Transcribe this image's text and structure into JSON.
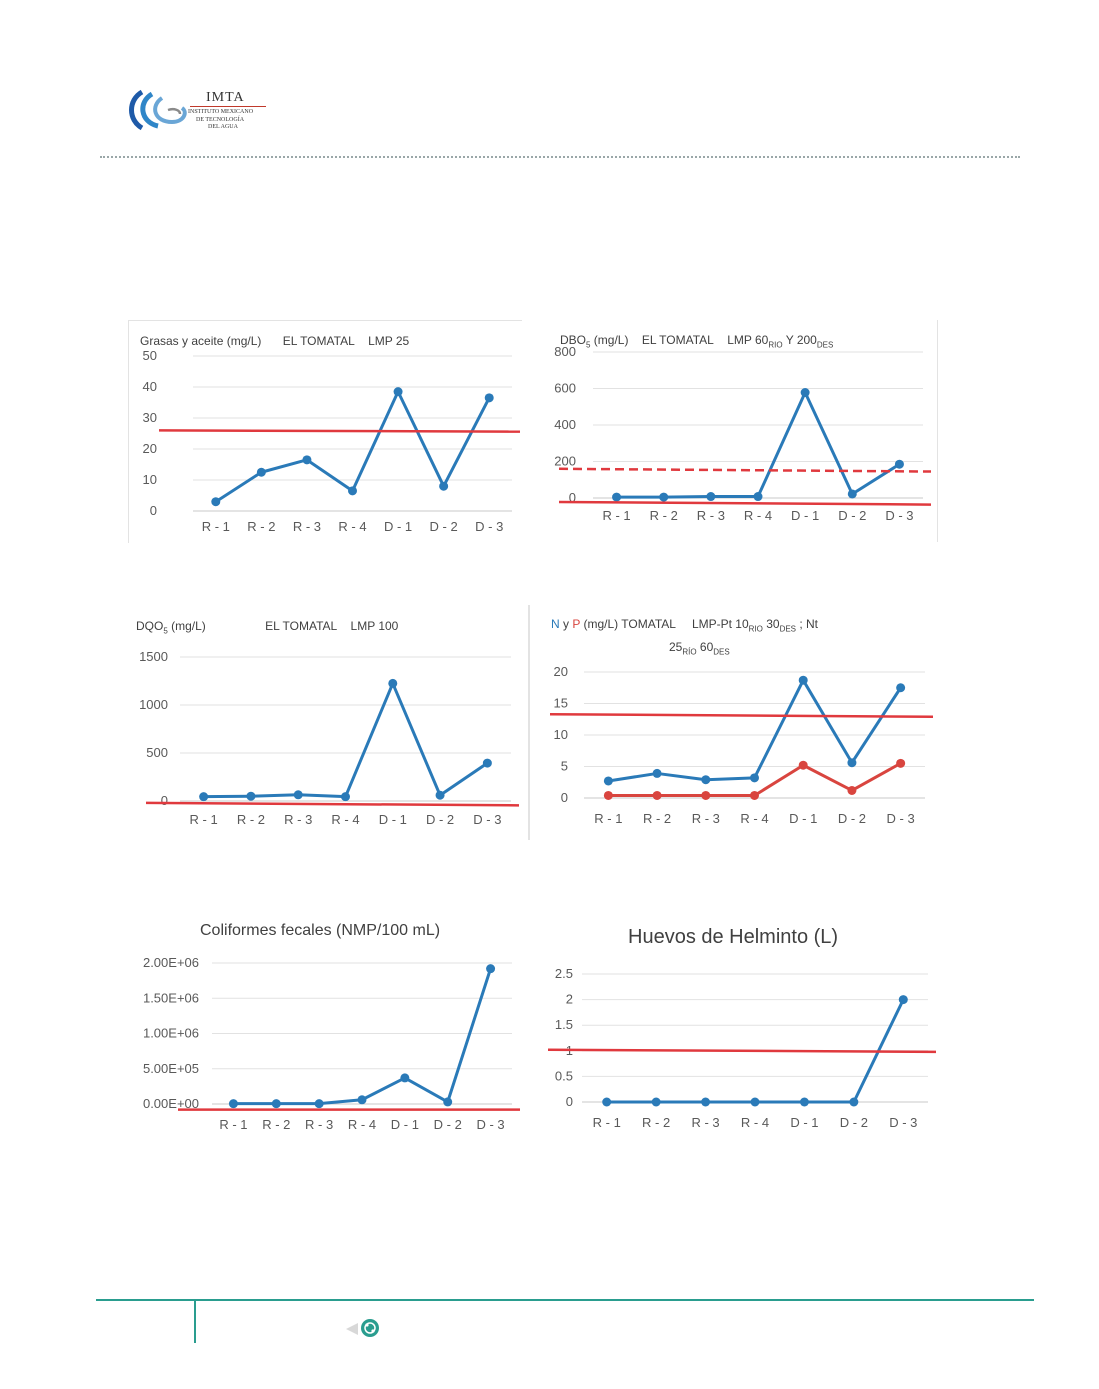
{
  "header": {
    "logo_title": "IMTA",
    "logo_lines": [
      "INSTITUTO MEXICANO",
      "DE TECNOLOGÍA",
      "DEL AGUA"
    ]
  },
  "charts": {
    "grasas": {
      "title": [
        "Grasas y aceite (mg/L)",
        "EL TOMATAL",
        "LMP 25"
      ]
    },
    "dbo": {
      "title": [
        "DBO",
        "5",
        " (mg/L)",
        "EL TOMATAL",
        "LMP 60",
        "RIO",
        " Y 200",
        "DES"
      ]
    },
    "dqo": {
      "title": [
        "DQO",
        "5",
        "  (mg/L)",
        "EL TOMATAL",
        "LMP 100"
      ]
    },
    "nyp": {
      "title": [
        "N",
        " y ",
        "P",
        " (mg/L) TOMATAL",
        "LMP-Pt  10",
        "RIO",
        "  30",
        "DES",
        "  ; Nt",
        "25",
        "RÍO",
        " 60",
        "DES"
      ]
    },
    "coliformes": {
      "title": "Coliformes fecales (NMP/100 mL)"
    },
    "helminto": {
      "title": "Huevos de Helminto (L)"
    }
  },
  "chart_data": [
    {
      "id": "grasas",
      "type": "line",
      "categories": [
        "R - 1",
        "R - 2",
        "R - 3",
        "R - 4",
        "D - 1",
        "D - 2",
        "D - 3"
      ],
      "series": [
        {
          "values": [
            3,
            12.5,
            16.5,
            6.5,
            38.5,
            8,
            36.5
          ],
          "color": "#2a7ab8"
        }
      ],
      "limits": [
        {
          "values": [
            26,
            25.6
          ],
          "color": "#e0393e",
          "dashed": false
        }
      ],
      "ylim": [
        0,
        50
      ],
      "yticks": [
        0,
        10,
        20,
        30,
        40,
        50
      ],
      "ytick_labels": [
        "0",
        "10",
        "20",
        "30",
        "40",
        "50"
      ],
      "grid": true
    },
    {
      "id": "dbo",
      "type": "line",
      "categories": [
        "R - 1",
        "R - 2",
        "R - 3",
        "R - 4",
        "D - 1",
        "D - 2",
        "D - 3"
      ],
      "series": [
        {
          "values": [
            5,
            5,
            8,
            8,
            578,
            22,
            185
          ],
          "color": "#2a7ab8"
        }
      ],
      "limits": [
        {
          "values": [
            160,
            145
          ],
          "color": "#e0393e",
          "dashed": true
        },
        {
          "values": [
            -22,
            -36
          ],
          "color": "#e0393e",
          "dashed": false
        }
      ],
      "ylim": [
        0,
        800
      ],
      "yticks": [
        0,
        200,
        400,
        600,
        800
      ],
      "ytick_labels": [
        "0",
        "200",
        "400",
        "600",
        "800"
      ],
      "grid": true
    },
    {
      "id": "dqo",
      "type": "line",
      "categories": [
        "R - 1",
        "R - 2",
        "R - 3",
        "R - 4",
        "D - 1",
        "D - 2",
        "D - 3"
      ],
      "series": [
        {
          "values": [
            45,
            50,
            65,
            45,
            1225,
            60,
            395
          ],
          "color": "#2a7ab8"
        }
      ],
      "limits": [
        {
          "values": [
            -20,
            -45
          ],
          "color": "#e0393e",
          "dashed": false
        }
      ],
      "ylim": [
        0,
        1500
      ],
      "yticks": [
        0,
        500,
        1000,
        1500
      ],
      "ytick_labels": [
        "0",
        "500",
        "1000",
        "1500"
      ],
      "grid": true
    },
    {
      "id": "nyp",
      "type": "line",
      "categories": [
        "R - 1",
        "R - 2",
        "R - 3",
        "R - 4",
        "D - 1",
        "D - 2",
        "D - 3"
      ],
      "series": [
        {
          "name": "N",
          "values": [
            2.7,
            3.9,
            2.9,
            3.2,
            18.7,
            5.6,
            17.5
          ],
          "color": "#2a7ab8"
        },
        {
          "name": "P",
          "values": [
            0.4,
            0.4,
            0.4,
            0.4,
            5.2,
            1.2,
            5.5
          ],
          "color": "#d9453f"
        }
      ],
      "limits": [
        {
          "values": [
            13.3,
            12.9
          ],
          "color": "#e0393e",
          "dashed": false
        }
      ],
      "ylim": [
        0,
        20
      ],
      "yticks": [
        0,
        5,
        10,
        15,
        20
      ],
      "ytick_labels": [
        "0",
        "5",
        "10",
        "15",
        "20"
      ],
      "grid": true
    },
    {
      "id": "coliformes",
      "type": "line",
      "title": "Coliformes fecales (NMP/100 mL)",
      "categories": [
        "R - 1",
        "R - 2",
        "R - 3",
        "R - 4",
        "D - 1",
        "D - 2",
        "D - 3"
      ],
      "series": [
        {
          "values": [
            5000,
            5000,
            5000,
            60000,
            370000,
            30000,
            1920000
          ],
          "color": "#2a7ab8"
        }
      ],
      "limits": [
        {
          "values": [
            -80000,
            -80000
          ],
          "color": "#e0393e",
          "dashed": false
        }
      ],
      "ylim": [
        0,
        2000000
      ],
      "yticks": [
        0,
        500000,
        1000000,
        1500000,
        2000000
      ],
      "ytick_labels": [
        "0.00E+00",
        "5.00E+05",
        "1.00E+06",
        "1.50E+06",
        "2.00E+06"
      ],
      "grid": true
    },
    {
      "id": "helminto",
      "type": "line",
      "title": "Huevos de Helminto (L)",
      "categories": [
        "R - 1",
        "R - 2",
        "R - 3",
        "R - 4",
        "D - 1",
        "D - 2",
        "D - 3"
      ],
      "series": [
        {
          "values": [
            0,
            0,
            0,
            0,
            0,
            0,
            2
          ],
          "color": "#2a7ab8"
        }
      ],
      "limits": [
        {
          "values": [
            1.02,
            0.98
          ],
          "color": "#e0393e",
          "dashed": false
        }
      ],
      "ylim": [
        0,
        2.5
      ],
      "yticks": [
        0,
        0.5,
        1,
        1.5,
        2,
        2.5
      ],
      "ytick_labels": [
        "0",
        "0.5",
        "1",
        "1.5",
        "2",
        "2.5"
      ],
      "grid": true
    }
  ]
}
